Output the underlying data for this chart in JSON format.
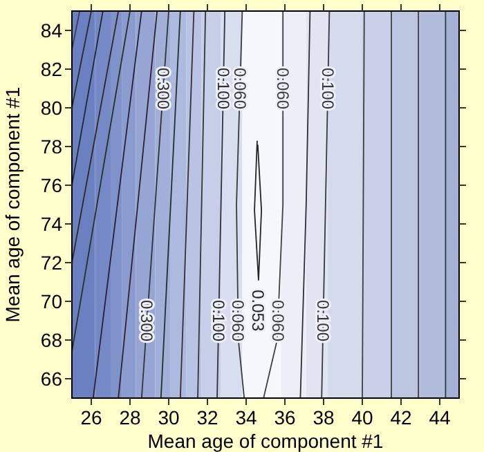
{
  "chart_data": {
    "type": "line",
    "xlabel": "Mean age of component #1",
    "ylabel": "Mean age of component #1",
    "xlim": [
      25,
      45
    ],
    "ylim": [
      65,
      85
    ],
    "xticks": [
      26,
      28,
      30,
      32,
      34,
      36,
      38,
      40,
      42,
      44
    ],
    "yticks": [
      66,
      68,
      70,
      72,
      74,
      76,
      78,
      80,
      82,
      84
    ],
    "marker": "none",
    "line_style": "solid",
    "grid": false,
    "bands": [
      {
        "axis": "x",
        "from": 25,
        "to": 26.2,
        "color": "#6a80c0"
      },
      {
        "axis": "x",
        "from": 26.2,
        "to": 27,
        "color": "#7589c6"
      },
      {
        "axis": "x",
        "from": 27,
        "to": 27.6,
        "color": "#7f92ca"
      },
      {
        "axis": "x",
        "from": 27.6,
        "to": 28.3,
        "color": "#8a9bcf"
      },
      {
        "axis": "x",
        "from": 28.3,
        "to": 29.3,
        "color": "#96a5d4"
      },
      {
        "axis": "x",
        "from": 29.3,
        "to": 30.1,
        "color": "#a1afd9"
      },
      {
        "axis": "x",
        "from": 30.1,
        "to": 30.9,
        "color": "#adb9de"
      },
      {
        "axis": "x",
        "from": 30.9,
        "to": 31.7,
        "color": "#b9c3e3"
      },
      {
        "axis": "x",
        "from": 31.7,
        "to": 32.7,
        "color": "#c6cee8"
      },
      {
        "axis": "x",
        "from": 32.7,
        "to": 33.8,
        "color": "#d8ddef"
      },
      {
        "axis": "x",
        "from": 33.8,
        "to": 35.8,
        "color": "#f6f7fb"
      },
      {
        "axis": "x",
        "from": 35.8,
        "to": 37.1,
        "color": "#eceff7"
      },
      {
        "axis": "x",
        "from": 37.1,
        "to": 38.2,
        "color": "#e1e5f2"
      },
      {
        "axis": "x",
        "from": 38.2,
        "to": 40,
        "color": "#d5dbed"
      },
      {
        "axis": "x",
        "from": 40,
        "to": 41.5,
        "color": "#c9d0e7"
      },
      {
        "axis": "x",
        "from": 41.5,
        "to": 43,
        "color": "#bdc6e1"
      },
      {
        "axis": "x",
        "from": 43,
        "to": 44.3,
        "color": "#b1bbda"
      },
      {
        "axis": "x",
        "from": 44.3,
        "to": 45,
        "color": "#a5b1d4"
      }
    ],
    "series": [
      {
        "color": "#3c3c50",
        "x": [
          25.4,
          25
        ],
        "values": [
          85,
          83
        ]
      },
      {
        "color": "#2a2a2a",
        "x": [
          26.0,
          25
        ],
        "values": [
          85,
          80
        ]
      },
      {
        "color": "#202830",
        "x": [
          26.6,
          25
        ],
        "values": [
          85,
          76
        ]
      },
      {
        "color": "#302820",
        "x": [
          27.4,
          25
        ],
        "values": [
          85,
          72
        ]
      },
      {
        "color": "#283020",
        "x": [
          28.0,
          25
        ],
        "values": [
          85,
          67.4
        ]
      },
      {
        "color": "#282030",
        "x": [
          28.6,
          26.1
        ],
        "values": [
          85,
          65
        ]
      },
      {
        "color": "#302028",
        "x": [
          29.4,
          27.4
        ],
        "values": [
          85,
          65
        ]
      },
      {
        "name": "0.300",
        "color": "#333333",
        "x": [
          30.0,
          29.3,
          28.6
        ],
        "values": [
          85,
          75,
          65
        ]
      },
      {
        "color": "#203028",
        "x": [
          30.6,
          29.6
        ],
        "values": [
          85,
          65
        ]
      },
      {
        "color": "#383030",
        "x": [
          31.3,
          30.6
        ],
        "values": [
          85,
          65
        ]
      },
      {
        "color": "#303830",
        "x": [
          31.9,
          31.5
        ],
        "values": [
          85,
          65
        ]
      },
      {
        "name": "0.100",
        "color": "#303038",
        "x": [
          32.9,
          32.7,
          32.5
        ],
        "values": [
          85,
          75,
          65
        ]
      },
      {
        "name": "0.060",
        "color": "#3a3a3a",
        "x": [
          33.8,
          33.5,
          33.6,
          33.9
        ],
        "values": [
          85,
          75,
          68,
          65
        ]
      },
      {
        "name": "0.053",
        "color": "#252525",
        "x": [
          34.57,
          34.43,
          34.64,
          34.79,
          34.6
        ],
        "values": [
          78.3,
          74.7,
          71.1,
          74.7,
          78.1
        ]
      },
      {
        "name": "0.060",
        "color": "#404040",
        "x": [
          35.9,
          35.9,
          35.6,
          34.9
        ],
        "values": [
          85,
          75,
          68,
          65
        ]
      },
      {
        "color": "#2e2e38",
        "x": [
          37.3,
          37.1,
          36.8
        ],
        "values": [
          85,
          75,
          65
        ]
      },
      {
        "name": "0.100",
        "color": "#383840",
        "x": [
          38.3,
          38.1,
          37.9
        ],
        "values": [
          85,
          75,
          65
        ]
      },
      {
        "color": "#404038",
        "x": [
          40.1,
          40.0
        ],
        "values": [
          85,
          65
        ]
      },
      {
        "color": "#384040",
        "x": [
          41.5,
          41.5
        ],
        "values": [
          85,
          65
        ]
      },
      {
        "color": "#403840",
        "x": [
          42.9,
          42.9
        ],
        "values": [
          85,
          65
        ]
      },
      {
        "color": "#2c3c3c",
        "x": [
          44.3,
          44.3
        ],
        "values": [
          85,
          65
        ]
      }
    ]
  }
}
